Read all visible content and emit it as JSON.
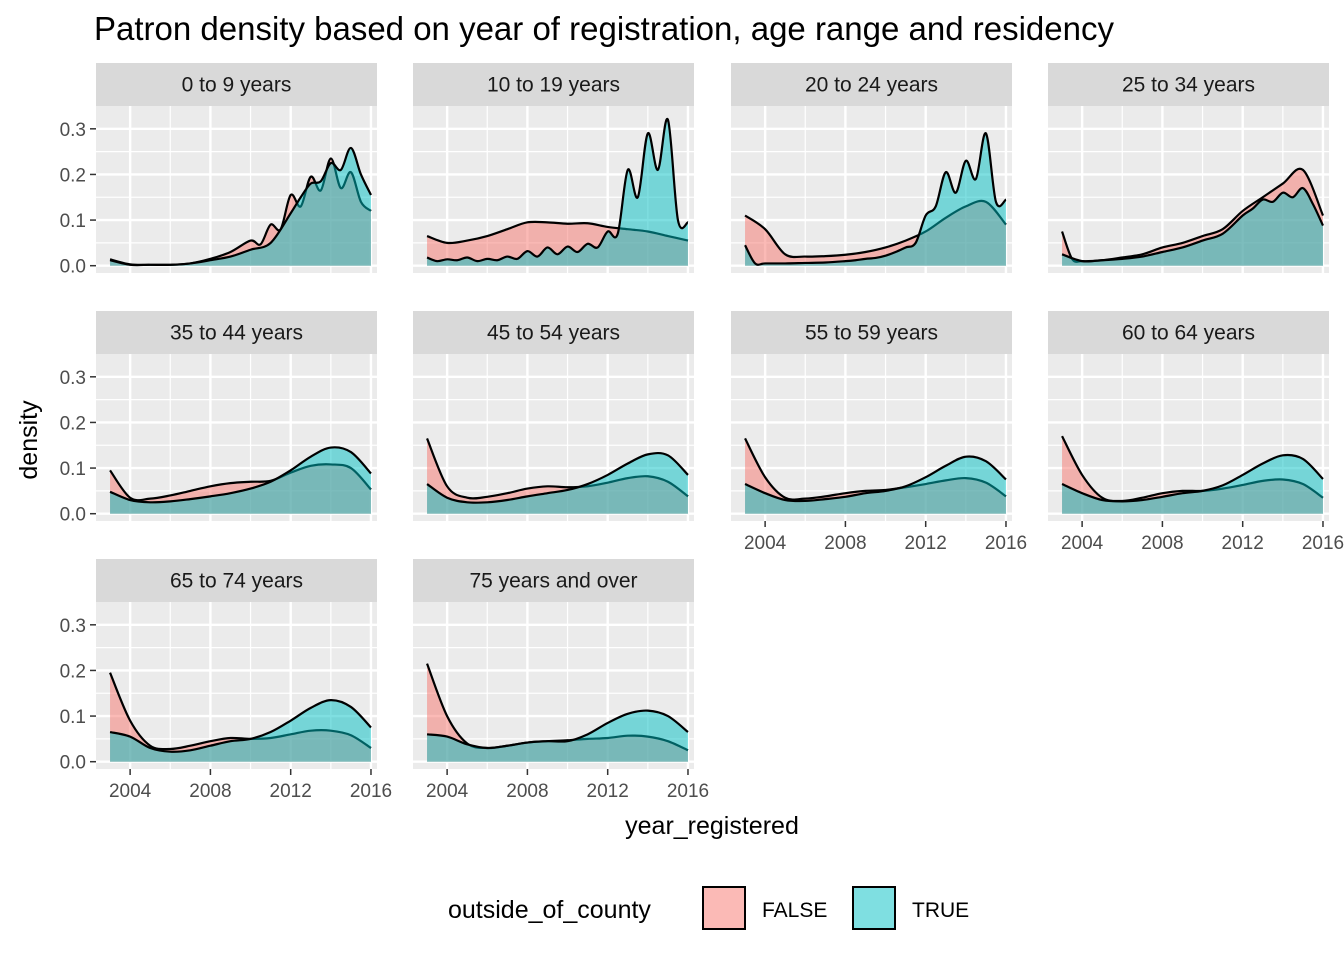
{
  "chart_data": {
    "type": "area",
    "title": "Patron density based on year of registration, age range and residency",
    "xlabel": "year_registered",
    "ylabel": "density",
    "xlim": [
      2002.3,
      2016.3
    ],
    "ylim": [
      -0.016,
      0.35
    ],
    "x_ticks": [
      2004,
      2008,
      2012,
      2016
    ],
    "x_tick_labels": [
      "2004",
      "2008",
      "2012",
      "2016"
    ],
    "y_ticks": [
      0,
      0.1,
      0.2,
      0.3
    ],
    "y_tick_labels": [
      "0.0",
      "0.1",
      "0.2",
      "0.3"
    ],
    "grid": true,
    "legend": {
      "title": "outside_of_county",
      "position": "bottom",
      "entries": [
        {
          "label": "FALSE",
          "color": "#F8766D"
        },
        {
          "label": "TRUE",
          "color": "#00BFC4"
        }
      ]
    },
    "colors": {
      "FALSE": "#F8766D",
      "TRUE": "#00BFC4",
      "panel_bg": "#EBEBEB",
      "strip_bg": "#D9D9D9",
      "grid": "#FFFFFF"
    },
    "fill_alpha": 0.5,
    "facets": [
      {
        "label": "0 to 9 years",
        "series": [
          {
            "group": "FALSE",
            "x": [
              2003,
              2004,
              2005,
              2006,
              2007,
              2008,
              2009,
              2010,
              2010.5,
              2011,
              2011.5,
              2012,
              2012.5,
              2013,
              2013.5,
              2014,
              2014.5,
              2015,
              2015.5,
              2016
            ],
            "y": [
              0.014,
              0.003,
              0.002,
              0.002,
              0.005,
              0.015,
              0.03,
              0.055,
              0.047,
              0.09,
              0.08,
              0.155,
              0.13,
              0.195,
              0.165,
              0.235,
              0.17,
              0.205,
              0.14,
              0.12
            ]
          },
          {
            "group": "TRUE",
            "x": [
              2003,
              2004,
              2005,
              2006,
              2007,
              2008,
              2009,
              2010,
              2011,
              2012,
              2012.5,
              2013,
              2013.5,
              2014,
              2014.5,
              2015,
              2015.5,
              2016
            ],
            "y": [
              0.012,
              0.002,
              0.002,
              0.002,
              0.005,
              0.012,
              0.02,
              0.035,
              0.05,
              0.115,
              0.15,
              0.18,
              0.185,
              0.225,
              0.21,
              0.258,
              0.2,
              0.155
            ]
          }
        ]
      },
      {
        "label": "10 to 19 years",
        "series": [
          {
            "group": "FALSE",
            "x": [
              2003,
              2004,
              2005,
              2006,
              2007,
              2008,
              2009,
              2010,
              2011,
              2012,
              2013,
              2014,
              2015,
              2016
            ],
            "y": [
              0.065,
              0.05,
              0.055,
              0.065,
              0.08,
              0.095,
              0.095,
              0.092,
              0.093,
              0.085,
              0.08,
              0.075,
              0.065,
              0.055
            ]
          },
          {
            "group": "TRUE",
            "x": [
              2003,
              2003.5,
              2004,
              2004.5,
              2005,
              2005.5,
              2006,
              2006.5,
              2007,
              2007.5,
              2008,
              2008.5,
              2009,
              2009.5,
              2010,
              2010.5,
              2011,
              2011.5,
              2012,
              2012.5,
              2013,
              2013.5,
              2014,
              2014.5,
              2015,
              2015.5,
              2016
            ],
            "y": [
              0.018,
              0.01,
              0.014,
              0.012,
              0.018,
              0.01,
              0.015,
              0.012,
              0.02,
              0.015,
              0.032,
              0.02,
              0.04,
              0.025,
              0.042,
              0.03,
              0.048,
              0.04,
              0.075,
              0.07,
              0.21,
              0.15,
              0.29,
              0.21,
              0.32,
              0.1,
              0.095
            ]
          }
        ]
      },
      {
        "label": "20 to 24 years",
        "series": [
          {
            "group": "FALSE",
            "x": [
              2003,
              2004,
              2005,
              2006,
              2007,
              2008,
              2009,
              2010,
              2011,
              2012,
              2013,
              2014,
              2015,
              2016
            ],
            "y": [
              0.11,
              0.08,
              0.025,
              0.02,
              0.021,
              0.024,
              0.03,
              0.04,
              0.055,
              0.075,
              0.105,
              0.13,
              0.14,
              0.09
            ]
          },
          {
            "group": "TRUE",
            "x": [
              2003,
              2003.5,
              2004,
              2005,
              2006,
              2007,
              2008,
              2008.5,
              2009,
              2009.5,
              2010,
              2010.5,
              2011,
              2011.5,
              2012,
              2012.5,
              2013,
              2013.5,
              2014,
              2014.5,
              2015,
              2015.5,
              2016
            ],
            "y": [
              0.045,
              0.005,
              0.005,
              0.005,
              0.006,
              0.007,
              0.01,
              0.012,
              0.015,
              0.017,
              0.022,
              0.03,
              0.04,
              0.05,
              0.11,
              0.13,
              0.205,
              0.16,
              0.23,
              0.19,
              0.29,
              0.14,
              0.145
            ]
          }
        ]
      },
      {
        "label": "25 to 34 years",
        "series": [
          {
            "group": "FALSE",
            "x": [
              2003,
              2003.5,
              2004,
              2005,
              2006,
              2007,
              2008,
              2009,
              2010,
              2011,
              2012,
              2013,
              2014,
              2015,
              2016
            ],
            "y": [
              0.075,
              0.015,
              0.01,
              0.012,
              0.018,
              0.025,
              0.04,
              0.05,
              0.065,
              0.08,
              0.12,
              0.15,
              0.18,
              0.21,
              0.11
            ]
          },
          {
            "group": "TRUE",
            "x": [
              2003,
              2004,
              2005,
              2006,
              2007,
              2008,
              2009,
              2010,
              2011,
              2012,
              2012.5,
              2013,
              2013.5,
              2014,
              2014.5,
              2015,
              2015.5,
              2016
            ],
            "y": [
              0.025,
              0.01,
              0.012,
              0.015,
              0.02,
              0.03,
              0.04,
              0.055,
              0.07,
              0.11,
              0.125,
              0.145,
              0.14,
              0.16,
              0.15,
              0.17,
              0.135,
              0.088
            ]
          }
        ]
      },
      {
        "label": "35 to 44 years",
        "series": [
          {
            "group": "FALSE",
            "x": [
              2003,
              2004,
              2005,
              2006,
              2007,
              2008,
              2009,
              2010,
              2011,
              2012,
              2013,
              2014,
              2015,
              2016
            ],
            "y": [
              0.095,
              0.035,
              0.033,
              0.04,
              0.05,
              0.06,
              0.067,
              0.07,
              0.072,
              0.09,
              0.105,
              0.108,
              0.1,
              0.053
            ]
          },
          {
            "group": "TRUE",
            "x": [
              2003,
              2004,
              2005,
              2006,
              2007,
              2008,
              2009,
              2010,
              2011,
              2012,
              2013,
              2014,
              2015,
              2016
            ],
            "y": [
              0.048,
              0.03,
              0.025,
              0.027,
              0.032,
              0.038,
              0.045,
              0.055,
              0.07,
              0.095,
              0.125,
              0.145,
              0.135,
              0.088
            ]
          }
        ]
      },
      {
        "label": "45 to 54 years",
        "series": [
          {
            "group": "FALSE",
            "x": [
              2003,
              2004,
              2005,
              2006,
              2007,
              2008,
              2009,
              2010,
              2011,
              2012,
              2013,
              2014,
              2015,
              2016
            ],
            "y": [
              0.165,
              0.06,
              0.035,
              0.037,
              0.045,
              0.055,
              0.06,
              0.058,
              0.06,
              0.068,
              0.078,
              0.082,
              0.07,
              0.038
            ]
          },
          {
            "group": "TRUE",
            "x": [
              2003,
              2004,
              2005,
              2006,
              2007,
              2008,
              2009,
              2010,
              2011,
              2012,
              2013,
              2014,
              2015,
              2016
            ],
            "y": [
              0.065,
              0.035,
              0.025,
              0.025,
              0.03,
              0.038,
              0.045,
              0.052,
              0.065,
              0.085,
              0.11,
              0.13,
              0.128,
              0.085
            ]
          }
        ]
      },
      {
        "label": "55 to 59 years",
        "series": [
          {
            "group": "FALSE",
            "x": [
              2003,
              2004,
              2005,
              2006,
              2007,
              2008,
              2009,
              2010,
              2011,
              2012,
              2013,
              2014,
              2015,
              2016
            ],
            "y": [
              0.165,
              0.08,
              0.035,
              0.033,
              0.038,
              0.045,
              0.05,
              0.052,
              0.058,
              0.065,
              0.073,
              0.078,
              0.068,
              0.038
            ]
          },
          {
            "group": "TRUE",
            "x": [
              2003,
              2004,
              2005,
              2006,
              2007,
              2008,
              2009,
              2010,
              2011,
              2012,
              2013,
              2014,
              2015,
              2016
            ],
            "y": [
              0.065,
              0.045,
              0.03,
              0.028,
              0.032,
              0.037,
              0.045,
              0.05,
              0.06,
              0.08,
              0.105,
              0.125,
              0.115,
              0.075
            ]
          }
        ]
      },
      {
        "label": "60 to 64 years",
        "series": [
          {
            "group": "FALSE",
            "x": [
              2003,
              2004,
              2005,
              2006,
              2007,
              2008,
              2009,
              2010,
              2011,
              2012,
              2013,
              2014,
              2015,
              2016
            ],
            "y": [
              0.17,
              0.085,
              0.035,
              0.028,
              0.035,
              0.045,
              0.05,
              0.05,
              0.055,
              0.063,
              0.072,
              0.075,
              0.065,
              0.035
            ]
          },
          {
            "group": "TRUE",
            "x": [
              2003,
              2004,
              2005,
              2006,
              2007,
              2008,
              2009,
              2010,
              2011,
              2012,
              2013,
              2014,
              2015,
              2016
            ],
            "y": [
              0.065,
              0.045,
              0.03,
              0.027,
              0.03,
              0.037,
              0.045,
              0.05,
              0.062,
              0.085,
              0.11,
              0.128,
              0.12,
              0.076
            ]
          }
        ]
      },
      {
        "label": "65 to 74 years",
        "series": [
          {
            "group": "FALSE",
            "x": [
              2003,
              2004,
              2005,
              2006,
              2007,
              2008,
              2009,
              2010,
              2011,
              2012,
              2013,
              2014,
              2015,
              2016
            ],
            "y": [
              0.195,
              0.09,
              0.035,
              0.028,
              0.035,
              0.045,
              0.052,
              0.05,
              0.052,
              0.06,
              0.068,
              0.068,
              0.058,
              0.03
            ]
          },
          {
            "group": "TRUE",
            "x": [
              2003,
              2004,
              2005,
              2006,
              2007,
              2008,
              2009,
              2010,
              2011,
              2012,
              2013,
              2014,
              2015,
              2016
            ],
            "y": [
              0.065,
              0.055,
              0.03,
              0.022,
              0.025,
              0.035,
              0.045,
              0.05,
              0.065,
              0.09,
              0.118,
              0.135,
              0.12,
              0.075
            ]
          }
        ]
      },
      {
        "label": "75 years and over",
        "series": [
          {
            "group": "FALSE",
            "x": [
              2003,
              2004,
              2005,
              2006,
              2007,
              2008,
              2009,
              2010,
              2011,
              2012,
              2013,
              2014,
              2015,
              2016
            ],
            "y": [
              0.215,
              0.1,
              0.04,
              0.03,
              0.035,
              0.042,
              0.045,
              0.047,
              0.05,
              0.052,
              0.057,
              0.055,
              0.045,
              0.025
            ]
          },
          {
            "group": "TRUE",
            "x": [
              2003,
              2004,
              2005,
              2006,
              2007,
              2008,
              2009,
              2010,
              2011,
              2012,
              2013,
              2014,
              2015,
              2016
            ],
            "y": [
              0.06,
              0.055,
              0.038,
              0.03,
              0.035,
              0.042,
              0.045,
              0.045,
              0.06,
              0.085,
              0.105,
              0.112,
              0.1,
              0.065
            ]
          }
        ]
      }
    ]
  }
}
